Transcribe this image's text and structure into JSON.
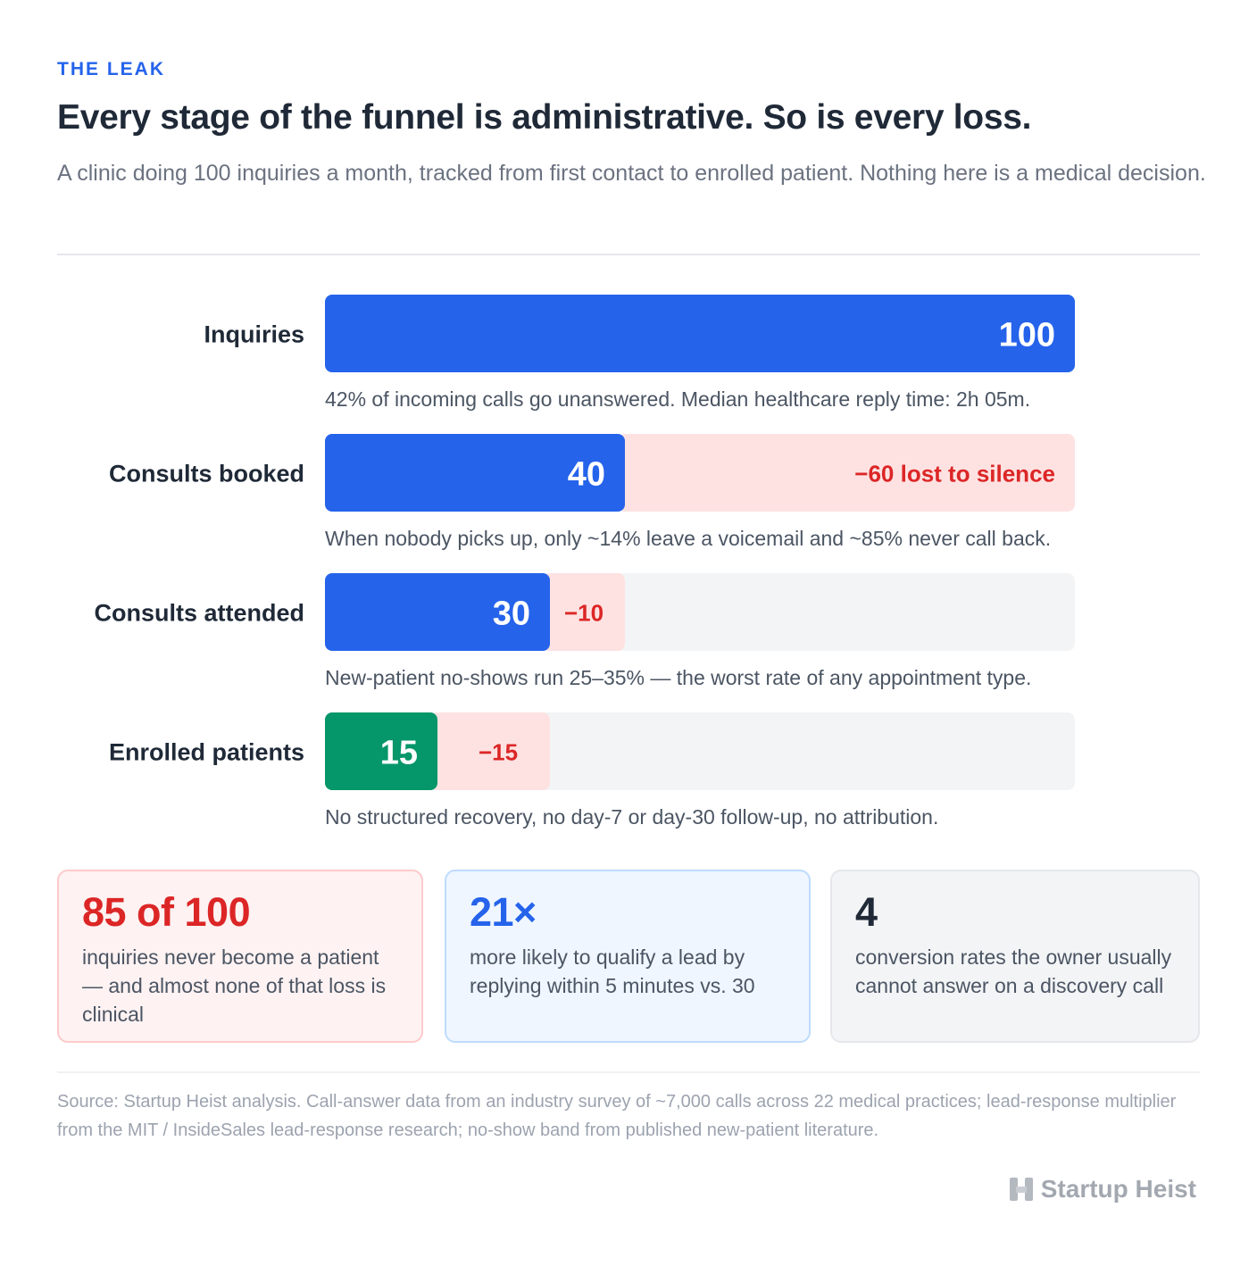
{
  "header": {
    "eyebrow": "THE LEAK",
    "title": "Every stage of the funnel is administrative. So is every loss.",
    "subtitle": "A clinic doing 100 inquiries a month, tracked from first contact to enrolled patient. Nothing here is a medical decision."
  },
  "chart_data": {
    "type": "bar",
    "orientation": "horizontal-funnel",
    "categories": [
      "Inquiries",
      "Consults booked",
      "Consults attended",
      "Enrolled patients"
    ],
    "values": [
      100,
      40,
      30,
      15
    ],
    "losses": [
      null,
      "−60 lost to silence",
      "−10",
      "−15"
    ],
    "notes": [
      "42% of incoming calls go unanswered. Median healthcare reply time: 2h 05m.",
      "When nobody picks up, only ~14% leave a voicemail and ~85% never call back.",
      "New-patient no-shows run 25–35% — the worst rate of any appointment type.",
      "No structured recovery, no day-7 or day-30 follow-up, no attribution."
    ],
    "xlim": [
      0,
      100
    ],
    "colors": {
      "kept": "#2563eb",
      "final": "#059669",
      "loss_fill": "#fee2e2",
      "loss_text": "#dc2626",
      "track": "#f3f4f6"
    }
  },
  "cards": [
    {
      "big": "85 of 100",
      "desc": "inquiries never become a patient — and almost none of that loss is clinical"
    },
    {
      "big": "21×",
      "desc": "more likely to qualify a lead by replying within 5 minutes vs. 30"
    },
    {
      "big": "4",
      "desc": "conversion rates the owner usually cannot answer on a discovery call"
    }
  ],
  "footer": {
    "source": "Source: Startup Heist analysis. Call-answer data from an industry survey of ~7,000 calls across 22 medical practices; lead-response multiplier from the MIT / InsideSales lead-response research; no-show band from published new-patient literature.",
    "brand": "Startup Heist",
    "brand_icon": "h-logo-icon"
  }
}
